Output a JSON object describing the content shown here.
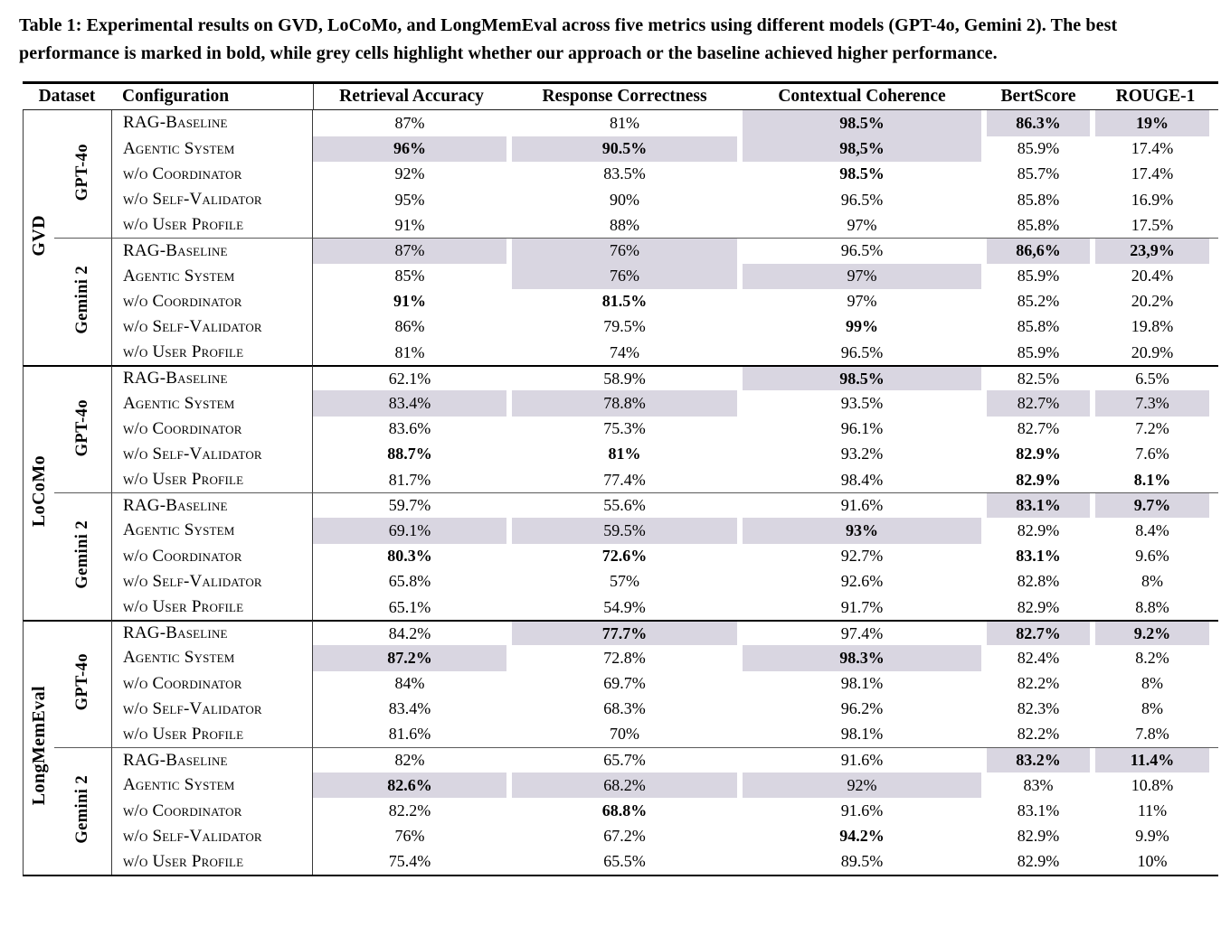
{
  "caption": "Table 1: Experimental results on GVD, LoCoMo, and LongMemEval across five metrics using different models (GPT-4o, Gemini 2). The best performance is marked in bold, while grey cells highlight whether our approach or the baseline achieved higher performance.",
  "highlight_color": "#d9d6e1",
  "table": {
    "columns": [
      "Dataset",
      "Configuration",
      "Retrieval Accuracy",
      "Response Correctness",
      "Contextual Coherence",
      "BertScore",
      "ROUGE-1"
    ],
    "config_labels": [
      "RAG-Baseline",
      "Agentic System",
      "w/o Coordinator",
      "w/o Self-Validator",
      "w/o User Profile"
    ],
    "groups": [
      {
        "dataset": "GVD",
        "models": [
          {
            "model": "GPT-4o",
            "rows": [
              {
                "config": "RAG-Baseline",
                "values": [
                  "87%",
                  "81%",
                  "98.5%",
                  "86.3%",
                  "19%"
                ],
                "bold": [
                  2,
                  3,
                  4
                ],
                "grey": [
                  2,
                  3,
                  4
                ]
              },
              {
                "config": "Agentic System",
                "values": [
                  "96%",
                  "90.5%",
                  "98,5%",
                  "85.9%",
                  "17.4%"
                ],
                "bold": [
                  0,
                  1,
                  2
                ],
                "grey": [
                  0,
                  1,
                  2
                ]
              },
              {
                "config": "w/o Coordinator",
                "values": [
                  "92%",
                  "83.5%",
                  "98.5%",
                  "85.7%",
                  "17.4%"
                ],
                "bold": [
                  2
                ],
                "grey": []
              },
              {
                "config": "w/o Self-Validator",
                "values": [
                  "95%",
                  "90%",
                  "96.5%",
                  "85.8%",
                  "16.9%"
                ],
                "bold": [],
                "grey": []
              },
              {
                "config": "w/o User Profile",
                "values": [
                  "91%",
                  "88%",
                  "97%",
                  "85.8%",
                  "17.5%"
                ],
                "bold": [],
                "grey": []
              }
            ]
          },
          {
            "model": "Gemini 2",
            "rows": [
              {
                "config": "RAG-Baseline",
                "values": [
                  "87%",
                  "76%",
                  "96.5%",
                  "86,6%",
                  "23,9%"
                ],
                "bold": [
                  3,
                  4
                ],
                "grey": [
                  0,
                  1,
                  3,
                  4
                ]
              },
              {
                "config": "Agentic System",
                "values": [
                  "85%",
                  "76%",
                  "97%",
                  "85.9%",
                  "20.4%"
                ],
                "bold": [],
                "grey": [
                  1,
                  2
                ]
              },
              {
                "config": "w/o Coordinator",
                "values": [
                  "91%",
                  "81.5%",
                  "97%",
                  "85.2%",
                  "20.2%"
                ],
                "bold": [
                  0,
                  1
                ],
                "grey": []
              },
              {
                "config": "w/o Self-Validator",
                "values": [
                  "86%",
                  "79.5%",
                  "99%",
                  "85.8%",
                  "19.8%"
                ],
                "bold": [
                  2
                ],
                "grey": []
              },
              {
                "config": "w/o User Profile",
                "values": [
                  "81%",
                  "74%",
                  "96.5%",
                  "85.9%",
                  "20.9%"
                ],
                "bold": [],
                "grey": []
              }
            ]
          }
        ]
      },
      {
        "dataset": "LoCoMo",
        "models": [
          {
            "model": "GPT-4o",
            "rows": [
              {
                "config": "RAG-Baseline",
                "values": [
                  "62.1%",
                  "58.9%",
                  "98.5%",
                  "82.5%",
                  "6.5%"
                ],
                "bold": [
                  2
                ],
                "grey": [
                  2
                ]
              },
              {
                "config": "Agentic System",
                "values": [
                  "83.4%",
                  "78.8%",
                  "93.5%",
                  "82.7%",
                  "7.3%"
                ],
                "bold": [],
                "grey": [
                  0,
                  1,
                  3,
                  4
                ]
              },
              {
                "config": "w/o Coordinator",
                "values": [
                  "83.6%",
                  "75.3%",
                  "96.1%",
                  "82.7%",
                  "7.2%"
                ],
                "bold": [],
                "grey": []
              },
              {
                "config": "w/o Self-Validator",
                "values": [
                  "88.7%",
                  "81%",
                  "93.2%",
                  "82.9%",
                  "7.6%"
                ],
                "bold": [
                  0,
                  1,
                  3
                ],
                "grey": []
              },
              {
                "config": "w/o User Profile",
                "values": [
                  "81.7%",
                  "77.4%",
                  "98.4%",
                  "82.9%",
                  "8.1%"
                ],
                "bold": [
                  3,
                  4
                ],
                "grey": []
              }
            ]
          },
          {
            "model": "Gemini 2",
            "rows": [
              {
                "config": "RAG-Baseline",
                "values": [
                  "59.7%",
                  "55.6%",
                  "91.6%",
                  "83.1%",
                  "9.7%"
                ],
                "bold": [
                  3,
                  4
                ],
                "grey": [
                  3,
                  4
                ]
              },
              {
                "config": "Agentic System",
                "values": [
                  "69.1%",
                  "59.5%",
                  "93%",
                  "82.9%",
                  "8.4%"
                ],
                "bold": [
                  2
                ],
                "grey": [
                  0,
                  1,
                  2
                ]
              },
              {
                "config": "w/o Coordinator",
                "values": [
                  "80.3%",
                  "72.6%",
                  "92.7%",
                  "83.1%",
                  "9.6%"
                ],
                "bold": [
                  0,
                  1,
                  3
                ],
                "grey": []
              },
              {
                "config": "w/o Self-Validator",
                "values": [
                  "65.8%",
                  "57%",
                  "92.6%",
                  "82.8%",
                  "8%"
                ],
                "bold": [],
                "grey": []
              },
              {
                "config": "w/o User Profile",
                "values": [
                  "65.1%",
                  "54.9%",
                  "91.7%",
                  "82.9%",
                  "8.8%"
                ],
                "bold": [],
                "grey": []
              }
            ]
          }
        ]
      },
      {
        "dataset": "LongMemEval",
        "models": [
          {
            "model": "GPT-4o",
            "rows": [
              {
                "config": "RAG-Baseline",
                "values": [
                  "84.2%",
                  "77.7%",
                  "97.4%",
                  "82.7%",
                  "9.2%"
                ],
                "bold": [
                  1,
                  3,
                  4
                ],
                "grey": [
                  1,
                  3,
                  4
                ]
              },
              {
                "config": "Agentic System",
                "values": [
                  "87.2%",
                  "72.8%",
                  "98.3%",
                  "82.4%",
                  "8.2%"
                ],
                "bold": [
                  0,
                  2
                ],
                "grey": [
                  0,
                  2
                ]
              },
              {
                "config": "w/o Coordinator",
                "values": [
                  "84%",
                  "69.7%",
                  "98.1%",
                  "82.2%",
                  "8%"
                ],
                "bold": [],
                "grey": []
              },
              {
                "config": "w/o Self-Validator",
                "values": [
                  "83.4%",
                  "68.3%",
                  "96.2%",
                  "82.3%",
                  "8%"
                ],
                "bold": [],
                "grey": []
              },
              {
                "config": "w/o User Profile",
                "values": [
                  "81.6%",
                  "70%",
                  "98.1%",
                  "82.2%",
                  "7.8%"
                ],
                "bold": [],
                "grey": []
              }
            ]
          },
          {
            "model": "Gemini 2",
            "rows": [
              {
                "config": "RAG-Baseline",
                "values": [
                  "82%",
                  "65.7%",
                  "91.6%",
                  "83.2%",
                  "11.4%"
                ],
                "bold": [
                  3,
                  4
                ],
                "grey": [
                  3,
                  4
                ]
              },
              {
                "config": "Agentic System",
                "values": [
                  "82.6%",
                  "68.2%",
                  "92%",
                  "83%",
                  "10.8%"
                ],
                "bold": [
                  0
                ],
                "grey": [
                  0,
                  1,
                  2
                ]
              },
              {
                "config": "w/o Coordinator",
                "values": [
                  "82.2%",
                  "68.8%",
                  "91.6%",
                  "83.1%",
                  "11%"
                ],
                "bold": [
                  1
                ],
                "grey": []
              },
              {
                "config": "w/o Self-Validator",
                "values": [
                  "76%",
                  "67.2%",
                  "94.2%",
                  "82.9%",
                  "9.9%"
                ],
                "bold": [
                  2
                ],
                "grey": []
              },
              {
                "config": "w/o User Profile",
                "values": [
                  "75.4%",
                  "65.5%",
                  "89.5%",
                  "82.9%",
                  "10%"
                ],
                "bold": [],
                "grey": []
              }
            ]
          }
        ]
      }
    ]
  }
}
